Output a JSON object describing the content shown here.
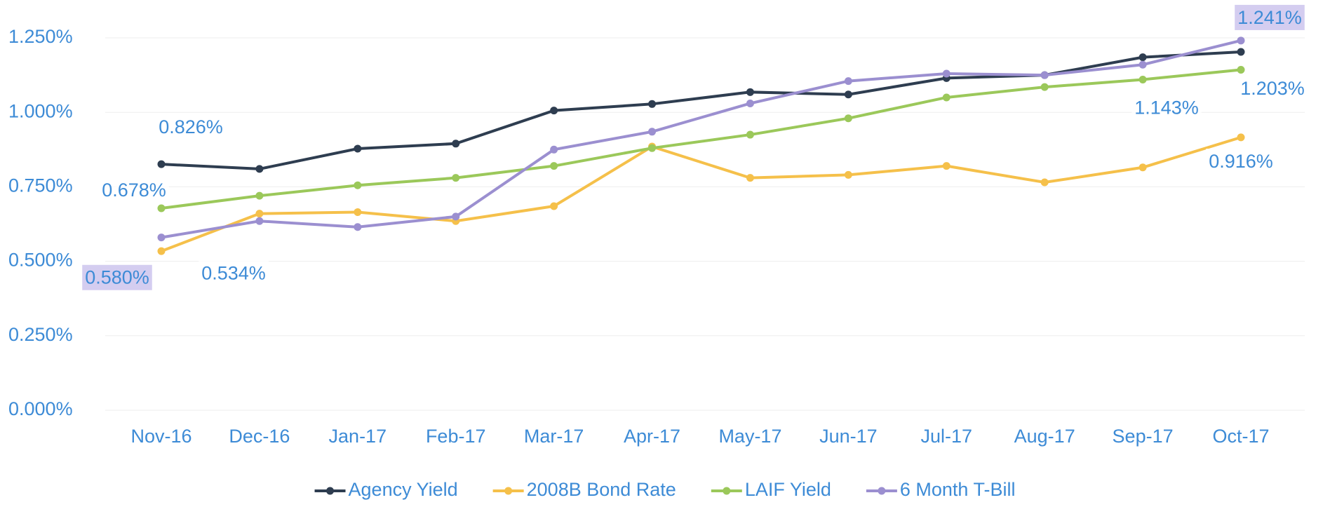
{
  "chart_data": {
    "type": "line",
    "categories": [
      "Nov-16",
      "Dec-16",
      "Jan-17",
      "Feb-17",
      "Mar-17",
      "Apr-17",
      "May-17",
      "Jun-17",
      "Jul-17",
      "Aug-17",
      "Sep-17",
      "Oct-17"
    ],
    "series": [
      {
        "name": "Agency Yield",
        "color": "#2e3d50",
        "values": [
          0.826,
          0.81,
          0.878,
          0.895,
          1.006,
          1.028,
          1.068,
          1.06,
          1.115,
          1.125,
          1.185,
          1.203
        ],
        "value_labels": [
          "0.826%",
          null,
          null,
          null,
          null,
          null,
          null,
          null,
          null,
          null,
          null,
          "1.203%"
        ]
      },
      {
        "name": "2008B Bond Rate",
        "color": "#f5c04a",
        "values": [
          0.534,
          0.66,
          0.665,
          0.635,
          0.685,
          0.885,
          0.78,
          0.79,
          0.82,
          0.765,
          0.815,
          0.916
        ],
        "value_labels": [
          "0.534%",
          null,
          null,
          null,
          null,
          null,
          null,
          null,
          null,
          null,
          null,
          "0.916%"
        ]
      },
      {
        "name": "LAIF Yield",
        "color": "#9bc85a",
        "values": [
          0.678,
          0.72,
          0.755,
          0.78,
          0.82,
          0.88,
          0.925,
          0.98,
          1.05,
          1.085,
          1.11,
          1.143
        ],
        "value_labels": [
          "0.678%",
          null,
          null,
          null,
          null,
          null,
          null,
          null,
          null,
          null,
          null,
          "1.143%"
        ]
      },
      {
        "name": "6 Month T-Bill",
        "color": "#9b8fd0",
        "values": [
          0.58,
          0.635,
          0.615,
          0.65,
          0.875,
          0.935,
          1.03,
          1.105,
          1.13,
          1.125,
          1.16,
          1.241
        ],
        "value_labels": [
          "0.580%",
          null,
          null,
          null,
          null,
          null,
          null,
          null,
          null,
          null,
          null,
          "1.241%"
        ]
      }
    ],
    "ylim": [
      0,
      1.25
    ],
    "yticks": [
      {
        "value": 0,
        "label": "0.000%"
      },
      {
        "value": 0.25,
        "label": "0.250%"
      },
      {
        "value": 0.5,
        "label": "0.500%"
      },
      {
        "value": 0.75,
        "label": "0.750%"
      },
      {
        "value": 1,
        "label": "1.000%"
      },
      {
        "value": 1.25,
        "label": "1.250%"
      }
    ],
    "grid": true,
    "legend": "bottom"
  }
}
